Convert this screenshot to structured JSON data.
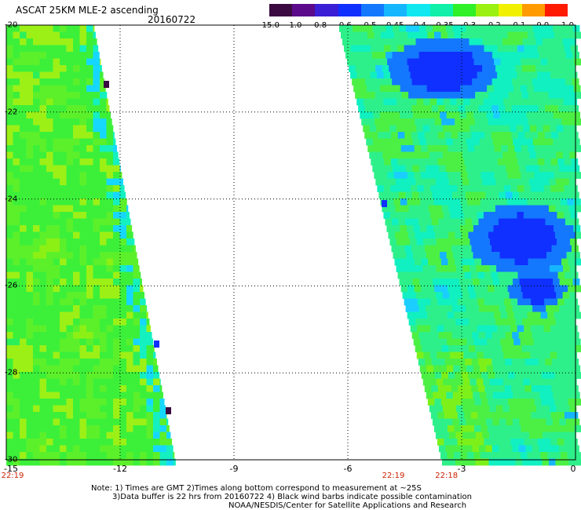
{
  "header": {
    "title": "ASCAT 25KM MLE-2 ascending",
    "date": "20160722"
  },
  "colorbar": {
    "labels": [
      "-15.0",
      "-1.0",
      "-0.8",
      "-0.6",
      "-0.5",
      "-0.45",
      "-0.4",
      "-0.35",
      "-0.3",
      "-0.2",
      "-0.1",
      "0.0",
      "1.0"
    ],
    "colors": [
      "#3a0a40",
      "#5a0a8a",
      "#3b1fd6",
      "#1030ff",
      "#1478ff",
      "#16b6ff",
      "#10e8f0",
      "#10f0a8",
      "#30f028",
      "#9af010",
      "#f0f000",
      "#ff9a00",
      "#ff1a00"
    ]
  },
  "axes": {
    "x_ticks": [
      "-15",
      "-12",
      "-9",
      "-6",
      "-3",
      "0"
    ],
    "y_ticks": [
      "-20",
      "-22",
      "-24",
      "-26",
      "-28",
      "-30"
    ],
    "x_range": [
      -15,
      0
    ],
    "y_range": [
      -20,
      -30
    ]
  },
  "times": [
    {
      "label": "22:19",
      "lon": -15
    },
    {
      "label": "22:19",
      "lon": -4.8
    },
    {
      "label": "22:18",
      "lon": -3.4
    }
  ],
  "notes": [
    "Note: 1) Times are GMT 2)Times along bottom correspond to measurement at ~25S",
    "3)Data buffer is 22 hrs from 20160722 4) Black wind barbs indicate possible contamination",
    "NOAA/NESDIS/Center for Satellite Applications and Research"
  ]
}
